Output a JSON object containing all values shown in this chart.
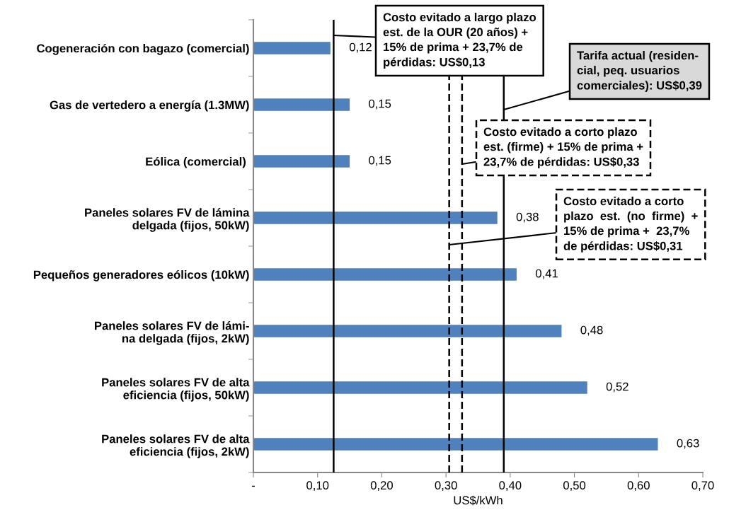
{
  "chart_data": {
    "type": "bar",
    "orientation": "horizontal",
    "xlabel": "US$/kWh",
    "categories": [
      "Cogeneración con bagazo (comercial)",
      "Gas de vertedero a energía (1.3MW)",
      "Eólica (comercial) ",
      "Paneles solares FV de lámina\ndelgada (fijos, 50kW)",
      "Pequeños generadores eólicos (10kW)",
      "Paneles solares FV de lámi-\nna delgada (fijos, 2kW)",
      "Paneles solares FV de alta\neficiencia (fijos, 50kW)",
      "Paneles solares FV de alta\neficiencia (fijos, 2kW)"
    ],
    "series": [
      {
        "color": "#4f81bd",
        "values": [
          0.12,
          0.15,
          0.15,
          0.38,
          0.41,
          0.48,
          0.52,
          0.63
        ],
        "value_labels": [
          "0,12",
          "0,15",
          "0,15",
          "0,38",
          "0,41",
          "0,48",
          "0,52",
          "0,63"
        ]
      }
    ],
    "xlim": [
      0,
      0.7
    ],
    "xticks": [
      {
        "value": 0,
        "label": "-"
      },
      {
        "value": 0.1,
        "label": "0,10"
      },
      {
        "value": 0.2,
        "label": "0,20"
      },
      {
        "value": 0.3,
        "label": "0,30"
      },
      {
        "value": 0.4,
        "label": "0,40"
      },
      {
        "value": 0.5,
        "label": "0,50"
      },
      {
        "value": 0.6,
        "label": "0,60"
      },
      {
        "value": 0.7,
        "label": "0,70"
      }
    ],
    "grid": false,
    "ref_lines": [
      {
        "axis": "x",
        "value": 0.125,
        "color": "#000000",
        "line_style": "solid",
        "label": "Costo evitado a largo plazo\nest. de la OUR (20 años) +\n15% de prima + 23,7% de\npérdidas: US$0,13"
      },
      {
        "axis": "x",
        "value": 0.39,
        "color": "#000000",
        "line_style": "solid",
        "label": "Tarifa actual (residen-\ncial, peq. usuarios\ncomerciales): US$0,39"
      },
      {
        "axis": "x",
        "value": 0.325,
        "color": "#000000",
        "line_style": "dashed",
        "label": "Costo evitado a corto plazo\nest. (firme) + 15% de prima +\n23,7% de pérdidas: US$0,33"
      },
      {
        "axis": "x",
        "value": 0.305,
        "color": "#000000",
        "line_style": "dashed",
        "label": "Costo evitado a corto\nplazo  est.  (no  firme)  +\n15% de prima +  23,7%\nde pérdidas: US$0,31"
      }
    ]
  }
}
